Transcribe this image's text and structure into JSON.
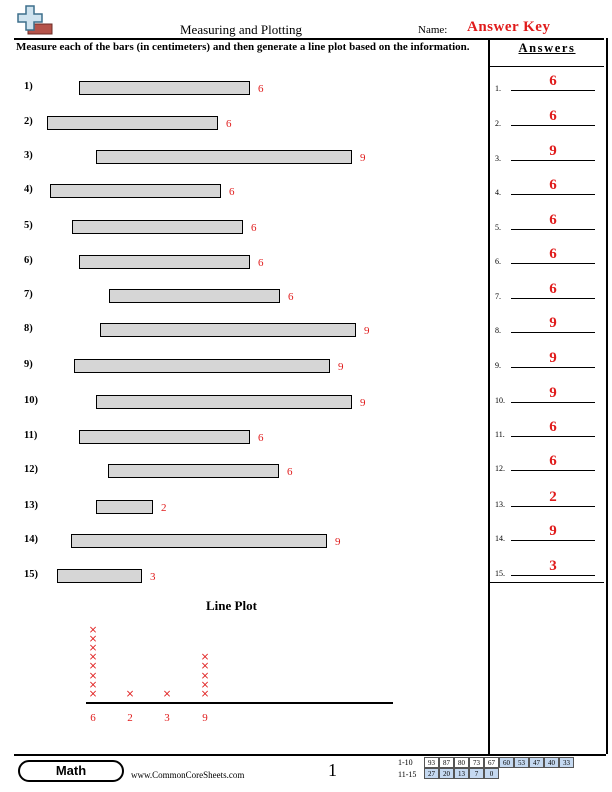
{
  "header": {
    "title": "Measuring and Plotting",
    "name_label": "Name:",
    "answer_key": "Answer Key",
    "logo_icon": "plus-sign-logo-icon"
  },
  "instructions": "Measure each of the bars (in centimeters) and then generate a line plot based on the information.",
  "questions": [
    {
      "num": "1)",
      "value": "6"
    },
    {
      "num": "2)",
      "value": "6"
    },
    {
      "num": "3)",
      "value": "9"
    },
    {
      "num": "4)",
      "value": "6"
    },
    {
      "num": "5)",
      "value": "6"
    },
    {
      "num": "6)",
      "value": "6"
    },
    {
      "num": "7)",
      "value": "6"
    },
    {
      "num": "8)",
      "value": "9"
    },
    {
      "num": "9)",
      "value": "9"
    },
    {
      "num": "10)",
      "value": "9"
    },
    {
      "num": "11)",
      "value": "6"
    },
    {
      "num": "12)",
      "value": "6"
    },
    {
      "num": "13)",
      "value": "2"
    },
    {
      "num": "14)",
      "value": "9"
    },
    {
      "num": "15)",
      "value": "3"
    }
  ],
  "answers": {
    "heading": "Answers",
    "items": [
      {
        "num": "1.",
        "value": "6"
      },
      {
        "num": "2.",
        "value": "6"
      },
      {
        "num": "3.",
        "value": "9"
      },
      {
        "num": "4.",
        "value": "6"
      },
      {
        "num": "5.",
        "value": "6"
      },
      {
        "num": "6.",
        "value": "6"
      },
      {
        "num": "7.",
        "value": "6"
      },
      {
        "num": "8.",
        "value": "9"
      },
      {
        "num": "9.",
        "value": "9"
      },
      {
        "num": "10.",
        "value": "9"
      },
      {
        "num": "11.",
        "value": "6"
      },
      {
        "num": "12.",
        "value": "6"
      },
      {
        "num": "13.",
        "value": "2"
      },
      {
        "num": "14.",
        "value": "9"
      },
      {
        "num": "15.",
        "value": "3"
      }
    ]
  },
  "line_plot": {
    "title": "Line Plot",
    "marker": "×",
    "categories": [
      "6",
      "2",
      "3",
      "9"
    ],
    "counts": [
      8,
      1,
      1,
      5
    ]
  },
  "footer": {
    "badge": "Math",
    "site": "www.CommonCoreSheets.com",
    "page": "1",
    "scores_row1_label": "1-10",
    "scores_row1": [
      "93",
      "87",
      "80",
      "73",
      "67",
      "60",
      "53",
      "47",
      "40",
      "33"
    ],
    "scores_row2_label": "11-15",
    "scores_row2": [
      "27",
      "20",
      "13",
      "7",
      "0"
    ]
  },
  "colors": {
    "answer_red": "#e01b1b",
    "bar_fill": "#d6d6d6",
    "score_blue": "#c5d9f1"
  }
}
